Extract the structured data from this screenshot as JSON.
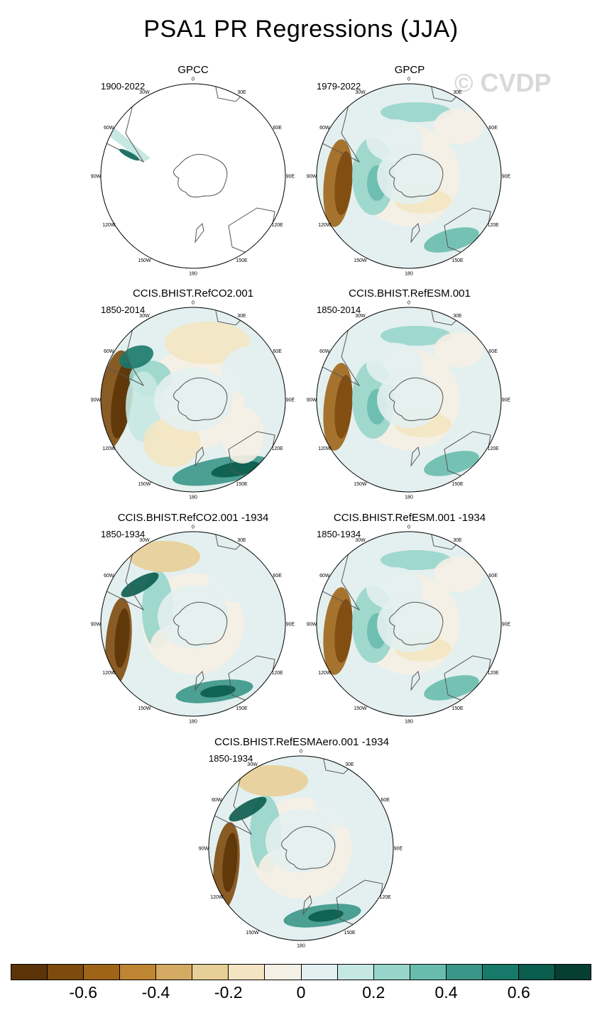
{
  "title": "PSA1 PR Regressions (JJA)",
  "watermark": "© CVDP",
  "lon_labels": [
    "0",
    "30E",
    "60E",
    "90E",
    "120E",
    "150E",
    "180",
    "150W",
    "120W",
    "90W",
    "60W",
    "30W"
  ],
  "panels": [
    {
      "title": "GPCC",
      "years": "1900-2022",
      "data_coverage": "sparse"
    },
    {
      "title": "GPCP",
      "years": "1979-2022",
      "data_coverage": "full"
    },
    {
      "title": "CCIS.BHIST.RefCO2.001",
      "years": "1850-2014",
      "data_coverage": "full"
    },
    {
      "title": "CCIS.BHIST.RefESM.001",
      "years": "1850-2014",
      "data_coverage": "full"
    },
    {
      "title": "CCIS.BHIST.RefCO2.001 -1934",
      "years": "1850-1934",
      "data_coverage": "full"
    },
    {
      "title": "CCIS.BHIST.RefESM.001 -1934",
      "years": "1850-1934",
      "data_coverage": "full"
    },
    {
      "title": "CCIS.BHIST.RefESMAero.001 -1934",
      "years": "1850-1934",
      "data_coverage": "full"
    }
  ],
  "colorbar": {
    "colors": [
      "#5c3408",
      "#7e4a0e",
      "#9e6518",
      "#be8532",
      "#d4aa62",
      "#e8cf97",
      "#f3e5c2",
      "#f5f0e6",
      "#e3f0ef",
      "#c6e8e2",
      "#97d5ca",
      "#68bcae",
      "#3a9688",
      "#18796a",
      "#0a5c4d",
      "#063e33"
    ],
    "tick_labels": [
      "-0.6",
      "-0.4",
      "-0.2",
      "0",
      "0.2",
      "0.4",
      "0.6"
    ]
  }
}
